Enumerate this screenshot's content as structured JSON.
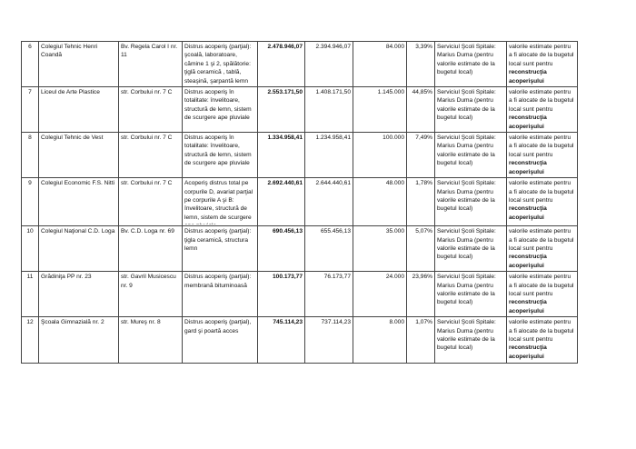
{
  "rows": [
    {
      "nr": "6",
      "name": "Colegiul Tehnic Henri Coandă",
      "address": "Bv. Regela Carol I nr. 11",
      "damage": "Distrus acoperiş (parţial): şcoală, laboratoare, cămine 1 şi 2, spălătorie: ţiglă ceramică , tablă, steaşină, şarpantă lemn",
      "total": "2.478.946,07",
      "remaining": "2.394.946,07",
      "allocated": "84.000",
      "percent": "3,39%",
      "responsible": "Serviciul Şcoli Spitale: Marius Duma (pentru valorile estimate de la bugetul local)",
      "note": "valorile estimate pentru a fi alocate de la bugetul local sunt pentru",
      "note_bold": "reconstrucţia acoperişului"
    },
    {
      "nr": "7",
      "name": "Liceul de Arte Plastice",
      "address": "str. Corbului nr. 7 C",
      "damage": "Distrus acoperiş  în totalitate: învelitoare, structură de lemn, sistem de scurgere ape pluviale",
      "total": "2.553.171,50",
      "remaining": "1.408.171,50",
      "allocated": "1.145.000",
      "percent": "44,85%",
      "responsible": "Serviciul Şcoli Spitale: Marius Duma (pentru valorile estimate de la bugetul local)",
      "note": "valorile estimate pentru a fi alocate de la bugetul local sunt pentru",
      "note_bold": "reconstrucţia acoperişului"
    },
    {
      "nr": "8",
      "name": "Colegiul Tehnic de Vest",
      "address": "str. Corbului nr. 7 C",
      "damage": "Distrus acoperiş  în totalitate: învelitoare, structură de lemn, sistem de scurgere ape pluviale",
      "total": "1.334.958,41",
      "remaining": "1.234.958,41",
      "allocated": "100.000",
      "percent": "7,49%",
      "responsible": "Serviciul Şcoli Spitale: Marius Duma (pentru valorile estimate de la bugetul local)",
      "note": "valorile estimate pentru a fi alocate de la bugetul local sunt pentru",
      "note_bold": "reconstrucţia acoperişului"
    },
    {
      "nr": "9",
      "name": "Colegiul Economic F.S. Nitti",
      "address": "str. Corbului nr. 7 C",
      "damage": "Acoperiş distrus total pe corpurile D, avariat parţial pe corpurile A şi B: învelitoare, structură de lemn, sistem de scurgere ape pluviale",
      "total": "2.692.440,61",
      "remaining": "2.644.440,61",
      "allocated": "48.000",
      "percent": "1,78%",
      "responsible": "Serviciul Şcoli Spitale: Marius Duma (pentru valorile estimate de la bugetul local)",
      "note": "valorile estimate pentru a fi alocate de la bugetul local sunt pentru",
      "note_bold": "reconstrucţia acoperişului"
    },
    {
      "nr": "10",
      "name": "Colegiul Naţional C.D. Loga",
      "address": "Bv. C.D. Loga nr. 69",
      "damage": "Distrus acoperiş (parţial): ţigla ceramică, structura lemn",
      "total": "690.456,13",
      "remaining": "655.456,13",
      "allocated": "35.000",
      "percent": "5,07%",
      "responsible": "Serviciul Şcoli Spitale: Marius Duma (pentru valorile estimate de la bugetul local)",
      "note": "valorile estimate pentru a fi alocate de la bugetul local sunt pentru",
      "note_bold": "reconstrucţia acoperişului"
    },
    {
      "nr": "11",
      "name": "Grădiniţa PP nr. 23",
      "address": "str. Gavril Musicescu nr. 9",
      "damage": "Distrus acoperiş (parţial): membrană bituminoasă",
      "total": "100.173,77",
      "remaining": "76.173,77",
      "allocated": "24.000",
      "percent": "23,96%",
      "responsible": "Serviciul Şcoli Spitale: Marius Duma (pentru valorile estimate de la bugetul local)",
      "note": "valorile estimate pentru a fi alocate de la bugetul local sunt pentru",
      "note_bold": "reconstrucţia acoperişului"
    },
    {
      "nr": "12",
      "name": "Şcoala Gimnazială nr. 2",
      "address": "str. Mureş nr. 8",
      "damage": "Distrus acoperiş (parţial), gard şi poartă acces",
      "total": "745.114,23",
      "remaining": "737.114,23",
      "allocated": "8.000",
      "percent": "1,07%",
      "responsible": "Serviciul Şcoli Spitale: Marius Duma (pentru valorile estimate de la bugetul local)",
      "note": "valorile estimate pentru a fi alocate de la bugetul local sunt pentru",
      "note_bold": "reconstrucţia acoperişului"
    }
  ]
}
